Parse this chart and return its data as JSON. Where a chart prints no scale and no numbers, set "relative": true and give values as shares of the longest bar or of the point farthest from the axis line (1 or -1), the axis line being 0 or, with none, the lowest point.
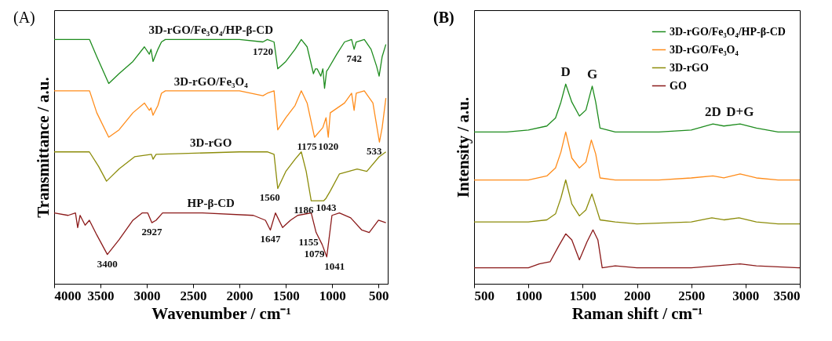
{
  "chart_data": [
    {
      "type": "line",
      "relative": true,
      "xlabel": "Wavenumber / cm⁻¹",
      "ylabel": "Transmittance / a.u.",
      "xlim": [
        4000,
        400
      ],
      "xticks": [
        4000,
        3500,
        3000,
        2500,
        2000,
        1500,
        1000,
        500
      ],
      "line_style": "solid",
      "series": [
        {
          "name": "3D-rGO/Fe₃O₄/HP-β-CD",
          "color": "#1e8c1e",
          "x": [
            4000,
            3618,
            3540,
            3411,
            3300,
            3150,
            3026,
            2973,
            2955,
            2933,
            2880,
            2842,
            2800,
            2000,
            1747,
            1700,
            1627,
            1587,
            1500,
            1400,
            1333,
            1270,
            1202,
            1180,
            1162,
            1122,
            1100,
            1082,
            1060,
            1042,
            950,
            866,
            790,
            763,
            740,
            653,
            580,
            520,
            493,
            460,
            420
          ],
          "values": [
            1.0,
            1.0,
            0.93,
            0.82,
            0.86,
            0.91,
            0.97,
            0.94,
            0.96,
            0.91,
            0.96,
            0.99,
            1.0,
            1.0,
            0.99,
            1.0,
            0.99,
            0.88,
            0.91,
            0.96,
            1.0,
            0.97,
            0.86,
            0.88,
            0.88,
            0.85,
            0.88,
            0.8,
            0.87,
            0.88,
            0.94,
            0.99,
            1.0,
            0.96,
            0.99,
            1.0,
            0.96,
            0.89,
            0.85,
            0.93,
            0.98
          ]
        },
        {
          "name": "3D-rGO/Fe₃O₄",
          "color": "#ff8c1a",
          "x": [
            4000,
            3618,
            3540,
            3411,
            3300,
            3150,
            3026,
            2973,
            2955,
            2933,
            2880,
            2842,
            2800,
            2000,
            1747,
            1700,
            1627,
            1587,
            1500,
            1400,
            1333,
            1270,
            1190,
            1100,
            1066,
            1042,
            1020,
            866,
            790,
            763,
            740,
            653,
            560,
            490,
            460,
            420
          ],
          "values": [
            0.79,
            0.79,
            0.7,
            0.6,
            0.63,
            0.7,
            0.74,
            0.71,
            0.72,
            0.69,
            0.73,
            0.78,
            0.79,
            0.79,
            0.77,
            0.78,
            0.79,
            0.63,
            0.68,
            0.73,
            0.79,
            0.74,
            0.6,
            0.64,
            0.68,
            0.6,
            0.7,
            0.74,
            0.78,
            0.71,
            0.78,
            0.79,
            0.74,
            0.58,
            0.64,
            0.76
          ]
        },
        {
          "name": "3D-rGO",
          "color": "#8c8c0a",
          "x": [
            4000,
            3620,
            3520,
            3435,
            3300,
            3132,
            2950,
            2933,
            2900,
            2000,
            1700,
            1627,
            1587,
            1500,
            1400,
            1333,
            1280,
            1226,
            1090,
            1066,
            1020,
            921,
            730,
            626,
            493,
            420
          ],
          "values": [
            0.54,
            0.54,
            0.48,
            0.42,
            0.47,
            0.52,
            0.53,
            0.51,
            0.53,
            0.54,
            0.54,
            0.53,
            0.39,
            0.46,
            0.51,
            0.54,
            0.46,
            0.34,
            0.34,
            0.35,
            0.38,
            0.45,
            0.47,
            0.46,
            0.52,
            0.54
          ]
        },
        {
          "name": "HP-β-CD",
          "color": "#8b1a1a",
          "x": [
            4000,
            3850,
            3770,
            3746,
            3720,
            3666,
            3620,
            3540,
            3426,
            3300,
            3150,
            3051,
            2990,
            2946,
            2900,
            2830,
            2400,
            1850,
            1720,
            1667,
            1612,
            1535,
            1450,
            1372,
            1226,
            1173,
            1107,
            1058,
            1002,
            922,
            800,
            680,
            600,
            500,
            420
          ],
          "values": [
            0.29,
            0.28,
            0.29,
            0.23,
            0.28,
            0.24,
            0.26,
            0.2,
            0.12,
            0.18,
            0.26,
            0.29,
            0.29,
            0.25,
            0.26,
            0.29,
            0.29,
            0.28,
            0.26,
            0.22,
            0.29,
            0.23,
            0.26,
            0.28,
            0.29,
            0.21,
            0.16,
            0.11,
            0.28,
            0.29,
            0.27,
            0.22,
            0.21,
            0.26,
            0.25
          ]
        }
      ],
      "annotations": [
        "(A)",
        {
          "text": "1720",
          "x": 1747,
          "y": 0.99
        },
        {
          "text": "742",
          "x": 763,
          "y": 0.96
        },
        {
          "text": "1175",
          "x": 1190,
          "y": 0.6
        },
        {
          "text": "1020",
          "x": 1042,
          "y": 0.6
        },
        {
          "text": "533",
          "x": 490,
          "y": 0.58
        },
        {
          "text": "1560",
          "x": 1587,
          "y": 0.39
        },
        {
          "text": "1186",
          "x": 1226,
          "y": 0.34
        },
        {
          "text": "1043",
          "x": 1066,
          "y": 0.35
        },
        {
          "text": "3400",
          "x": 3426,
          "y": 0.12
        },
        {
          "text": "2927",
          "x": 2946,
          "y": 0.25
        },
        {
          "text": "1647",
          "x": 1667,
          "y": 0.22
        },
        {
          "text": "1155",
          "x": 1173,
          "y": 0.21
        },
        {
          "text": "1079",
          "x": 1107,
          "y": 0.16
        },
        {
          "text": "1041",
          "x": 1058,
          "y": 0.11
        }
      ]
    },
    {
      "type": "line",
      "relative": true,
      "xlabel": "Raman shift / cm⁻¹",
      "ylabel": "Intensity / a.u.",
      "xlim": [
        500,
        3500
      ],
      "xticks": [
        500,
        1000,
        1500,
        2000,
        2500,
        3000,
        3500
      ],
      "line_style": "solid",
      "legend": "top right",
      "series": [
        {
          "name": "3D-rGO/Fe₃O₄/HP-β-CD",
          "color": "#1e8c1e",
          "x": [
            500,
            800,
            1000,
            1170,
            1250,
            1300,
            1344,
            1400,
            1470,
            1530,
            1588,
            1620,
            1660,
            1800,
            2200,
            2500,
            2700,
            2800,
            2950,
            3100,
            3300,
            3500
          ],
          "values": [
            0.76,
            0.76,
            0.77,
            0.79,
            0.83,
            0.91,
            1.0,
            0.91,
            0.84,
            0.87,
            0.99,
            0.91,
            0.78,
            0.76,
            0.76,
            0.77,
            0.8,
            0.79,
            0.8,
            0.78,
            0.76,
            0.76
          ]
        },
        {
          "name": "3D-rGO/Fe₃O₄",
          "color": "#ff8c1a",
          "x": [
            500,
            800,
            1000,
            1170,
            1250,
            1300,
            1344,
            1400,
            1470,
            1530,
            1580,
            1620,
            1660,
            1800,
            2200,
            2500,
            2700,
            2800,
            2950,
            3100,
            3300,
            3500
          ],
          "values": [
            0.52,
            0.52,
            0.52,
            0.54,
            0.58,
            0.66,
            0.76,
            0.63,
            0.58,
            0.61,
            0.72,
            0.65,
            0.53,
            0.52,
            0.52,
            0.53,
            0.54,
            0.53,
            0.55,
            0.53,
            0.52,
            0.52
          ]
        },
        {
          "name": "3D-rGO",
          "color": "#8c8c0a",
          "x": [
            500,
            800,
            1000,
            1170,
            1250,
            1300,
            1344,
            1400,
            1470,
            1530,
            1585,
            1620,
            1660,
            1800,
            2000,
            2500,
            2690,
            2800,
            2940,
            3100,
            3300,
            3500
          ],
          "values": [
            0.31,
            0.31,
            0.31,
            0.32,
            0.35,
            0.43,
            0.52,
            0.4,
            0.34,
            0.37,
            0.45,
            0.39,
            0.32,
            0.31,
            0.3,
            0.31,
            0.33,
            0.32,
            0.33,
            0.31,
            0.3,
            0.3
          ]
        },
        {
          "name": "GO",
          "color": "#8b1a1a",
          "x": [
            500,
            650,
            800,
            1000,
            1100,
            1200,
            1280,
            1344,
            1400,
            1470,
            1540,
            1595,
            1640,
            1680,
            1800,
            2000,
            2500,
            2950,
            3100,
            3500
          ],
          "values": [
            0.08,
            0.08,
            0.08,
            0.08,
            0.1,
            0.11,
            0.19,
            0.25,
            0.22,
            0.12,
            0.21,
            0.27,
            0.22,
            0.08,
            0.09,
            0.08,
            0.08,
            0.1,
            0.09,
            0.08
          ]
        }
      ],
      "annotations": [
        "(B)",
        {
          "text": "D",
          "x": 1344,
          "y": 1.0
        },
        {
          "text": "G",
          "x": 1588,
          "y": 0.99
        },
        {
          "text": "2D",
          "x": 2700,
          "y": 0.8
        },
        {
          "text": "D+G",
          "x": 2950,
          "y": 0.8
        }
      ]
    }
  ]
}
